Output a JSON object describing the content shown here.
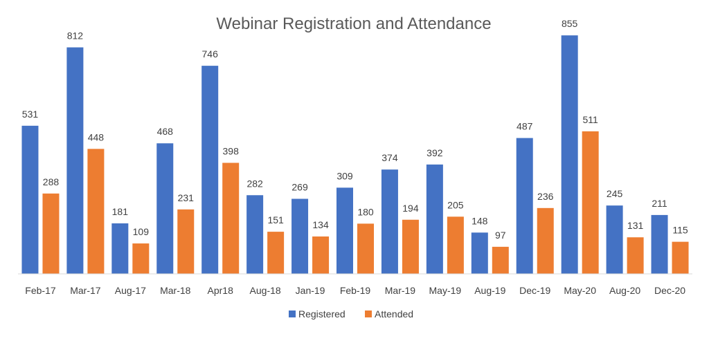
{
  "chart_data": {
    "type": "bar",
    "title": "Webinar Registration and Attendance",
    "xlabel": "",
    "ylabel": "",
    "ylim": [
      0,
      900
    ],
    "grid": false,
    "legend_position": "bottom",
    "categories": [
      "Feb-17",
      "Mar-17",
      "Aug-17",
      "Mar-18",
      "Apr18",
      "Aug-18",
      "Jan-19",
      "Feb-19",
      "Mar-19",
      "May-19",
      "Aug-19",
      "Dec-19",
      "May-20",
      "Aug-20",
      "Dec-20"
    ],
    "series": [
      {
        "name": "Registered",
        "color": "#4472C4",
        "values": [
          531,
          812,
          181,
          468,
          746,
          282,
          269,
          309,
          374,
          392,
          148,
          487,
          855,
          245,
          211
        ]
      },
      {
        "name": "Attended",
        "color": "#ED7D31",
        "values": [
          288,
          448,
          109,
          231,
          398,
          151,
          134,
          180,
          194,
          205,
          97,
          236,
          511,
          131,
          115
        ]
      }
    ]
  }
}
